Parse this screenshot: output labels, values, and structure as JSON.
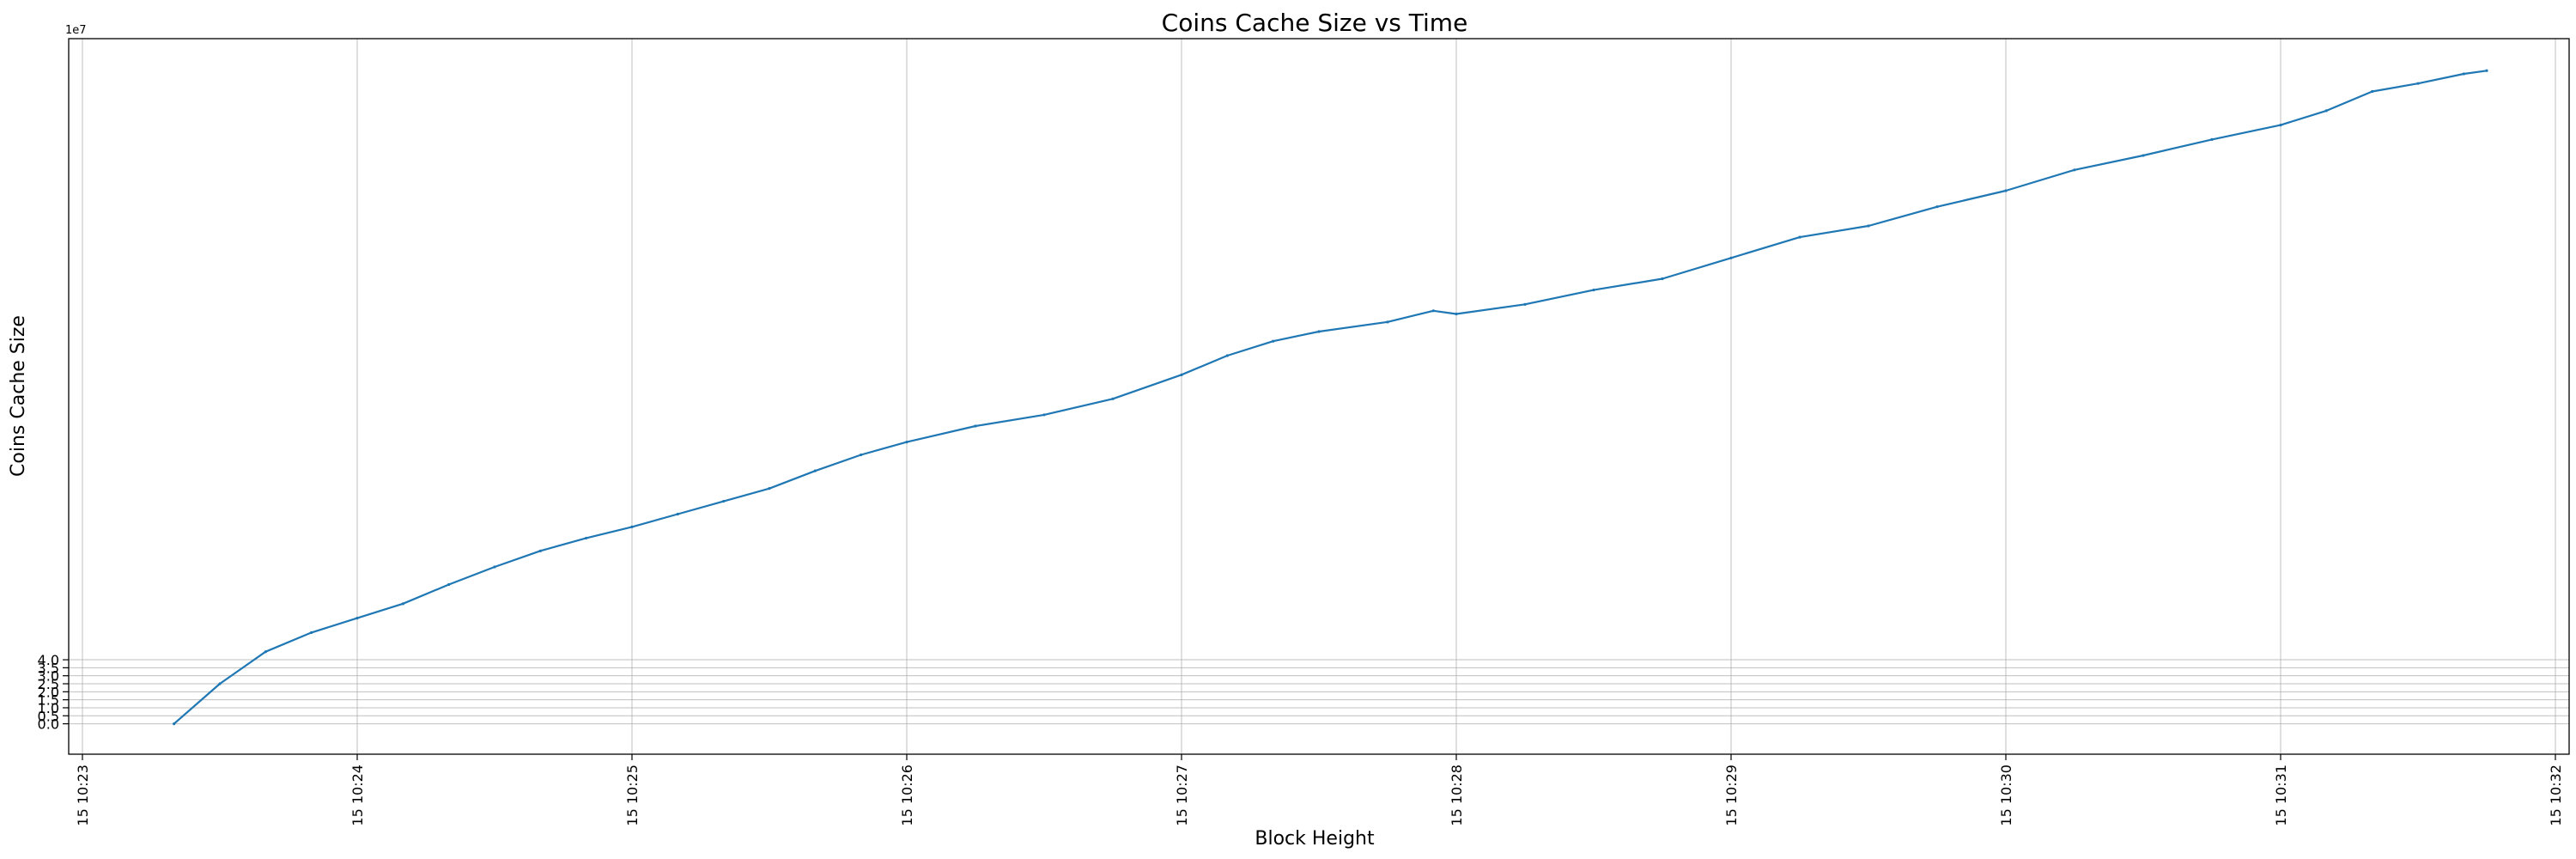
{
  "chart_data": {
    "type": "line",
    "title": "Coins Cache Size vs Time",
    "xlabel": "Block Height",
    "ylabel": "Coins Cache Size",
    "y_offset_label": "1e7",
    "grid": true,
    "line_color": "#1f77b4",
    "xlim": [
      "10:22:57",
      "10:32:03"
    ],
    "ylim": [
      -1.9,
      42.8
    ],
    "y_ticks": [
      0.0,
      0.5,
      1.0,
      1.5,
      2.0,
      2.5,
      3.0,
      3.5,
      4.0
    ],
    "y_tick_labels": [
      "0.0",
      "0.5",
      "1.0",
      "1.5",
      "2.0",
      "2.5",
      "3.0",
      "3.5",
      "4.0"
    ],
    "x_ticks": [
      "10:23",
      "10:24",
      "10:25",
      "10:26",
      "10:27",
      "10:28",
      "10:29",
      "10:30",
      "10:31",
      "10:32"
    ],
    "x_tick_labels": [
      "15 10:23",
      "15 10:24",
      "15 10:25",
      "15 10:26",
      "15 10:27",
      "15 10:28",
      "15 10:29",
      "15 10:30",
      "15 10:31",
      "15 10:32"
    ],
    "series": [
      {
        "x": [
          "10:23:20",
          "10:23:30",
          "10:23:40",
          "10:23:50",
          "10:24:00",
          "10:24:10",
          "10:24:20",
          "10:24:30",
          "10:24:40",
          "10:24:50",
          "10:25:00",
          "10:25:10",
          "10:25:20",
          "10:25:30",
          "10:25:40",
          "10:25:50",
          "10:26:00",
          "10:26:15",
          "10:26:30",
          "10:26:45",
          "10:27:00",
          "10:27:10",
          "10:27:20",
          "10:27:30",
          "10:27:45",
          "10:27:55",
          "10:28:00",
          "10:28:15",
          "10:28:30",
          "10:28:45",
          "10:29:00",
          "10:29:15",
          "10:29:30",
          "10:29:45",
          "10:30:00",
          "10:30:15",
          "10:30:30",
          "10:30:45",
          "10:31:00",
          "10:31:10",
          "10:31:20",
          "10:31:30",
          "10:31:40",
          "10:31:45"
        ],
        "values": [
          0.0,
          2.5,
          4.5,
          5.7,
          6.6,
          7.5,
          8.7,
          9.8,
          10.8,
          11.6,
          12.3,
          13.1,
          13.9,
          14.7,
          15.8,
          16.8,
          17.6,
          18.6,
          19.3,
          20.3,
          21.8,
          23.0,
          23.9,
          24.5,
          25.1,
          25.8,
          25.6,
          26.2,
          27.1,
          27.8,
          29.1,
          30.4,
          31.1,
          32.3,
          33.3,
          34.6,
          35.5,
          36.5,
          37.4,
          38.3,
          39.5,
          40.0,
          40.6,
          40.8
        ]
      }
    ]
  }
}
